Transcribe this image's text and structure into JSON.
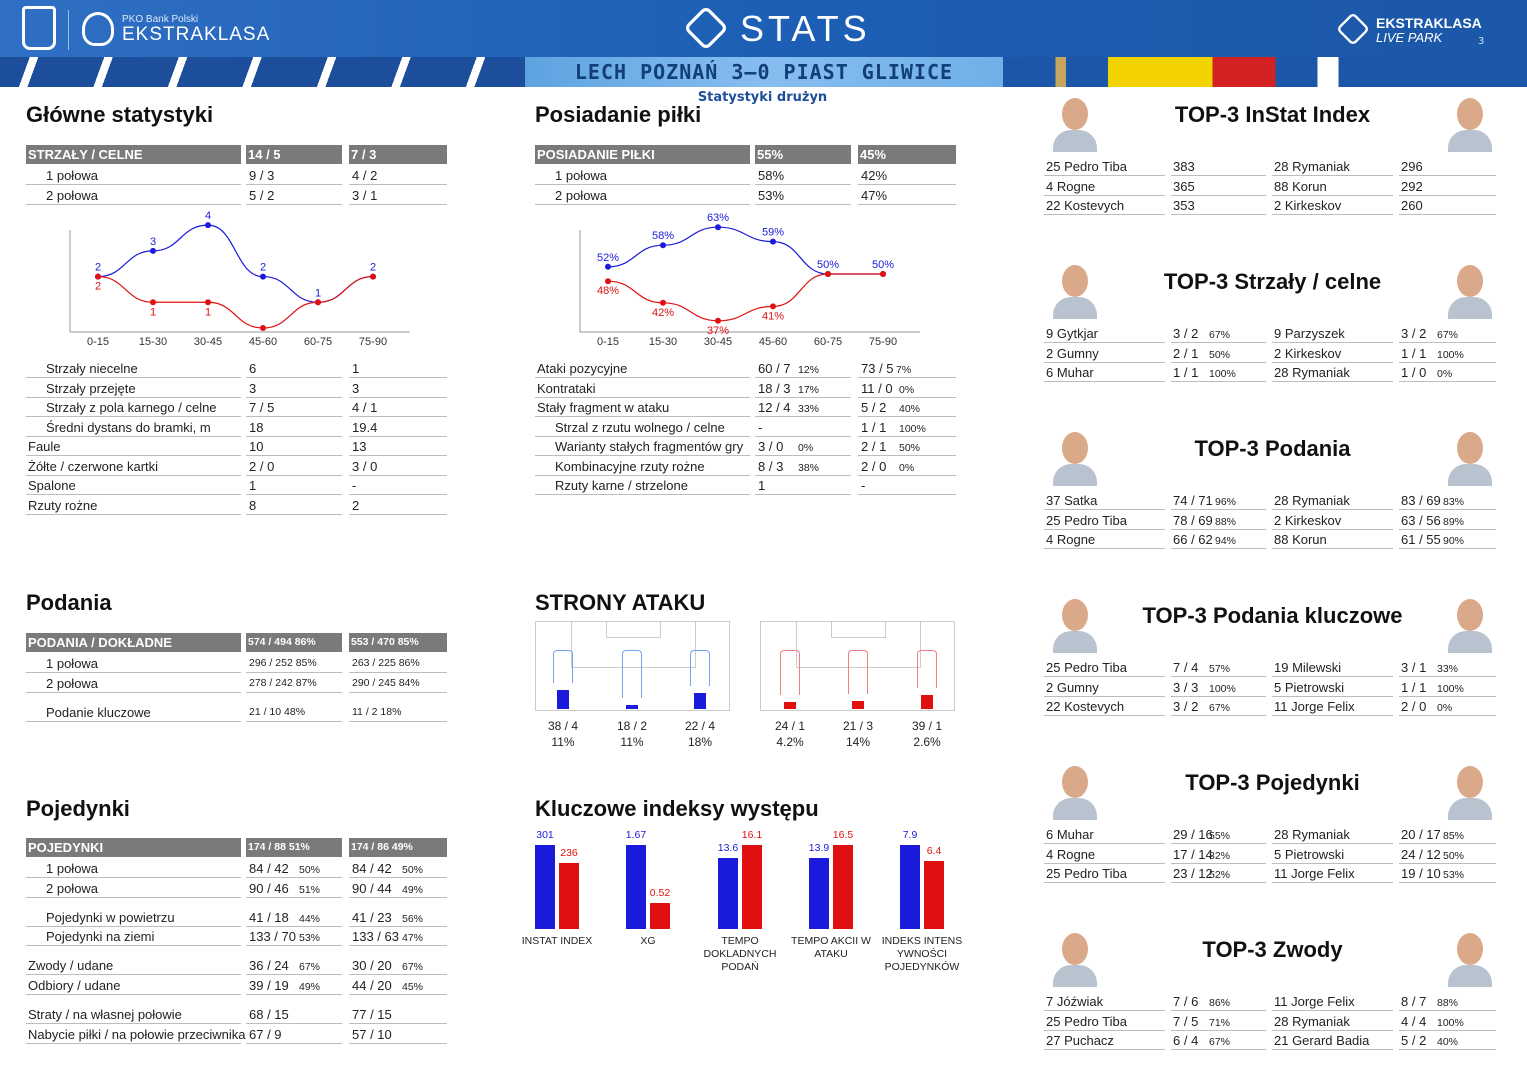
{
  "header": {
    "sponsor": "PKO Bank Polski",
    "league": "EKSTRAKLASA",
    "stats": "STATS",
    "liveparkTop": "EKSTRAKLASA",
    "liveparkBottom": "LIVE PARK",
    "match": "LECH POZNAŃ 3–0 PIAST GLIWICE",
    "subtitle": "Statystyki drużyn",
    "page": "3"
  },
  "colors": {
    "home": "#1a1adb",
    "away": "#e01010",
    "header": "#1c5fb5",
    "tablehead": "#7a7a7a"
  },
  "main": {
    "title": "Główne statystyki",
    "head": [
      "STRZAŁY / CELNE",
      "14 / 5",
      "7 / 3"
    ],
    "halves": [
      [
        "1 połowa",
        "9 / 3",
        "4 / 2"
      ],
      [
        "2 połowa",
        "5 / 2",
        "3 / 1"
      ]
    ],
    "rows": [
      [
        "Strzały niecelne",
        "6",
        "1"
      ],
      [
        "Strzały przejęte",
        "3",
        "3"
      ],
      [
        "Strzały z pola karnego / celne",
        "7 / 5",
        "4 / 1"
      ],
      [
        "Średni dystans do bramki, m",
        "18",
        "19.4"
      ],
      [
        "Faule",
        "10",
        "13"
      ],
      [
        "Żółte / czerwone kartki",
        "2 / 0",
        "3 / 0"
      ],
      [
        "Spalone",
        "1",
        "-"
      ],
      [
        "Rzuty rożne",
        "8",
        "2"
      ]
    ]
  },
  "chart_data": [
    {
      "type": "line",
      "categories": [
        "0-15",
        "15-30",
        "30-45",
        "45-60",
        "60-75",
        "75-90"
      ],
      "series": [
        {
          "values": [
            2,
            3,
            4,
            2,
            1,
            2
          ]
        },
        {
          "values": [
            2,
            1,
            1,
            0,
            1,
            2
          ]
        }
      ],
      "data_labels": [
        [
          "2",
          "3",
          "4",
          "2",
          "1",
          "2"
        ],
        [
          "2",
          "1",
          "1",
          "",
          "",
          ""
        ]
      ]
    },
    {
      "type": "line",
      "categories": [
        "0-15",
        "15-30",
        "30-45",
        "45-60",
        "60-75",
        "75-90"
      ],
      "series": [
        {
          "values": [
            52,
            58,
            63,
            59,
            50,
            50
          ]
        },
        {
          "values": [
            48,
            42,
            37,
            41,
            50,
            50
          ]
        }
      ],
      "data_labels": [
        [
          "52%",
          "58%",
          "63%",
          "59%",
          "50%",
          "50%"
        ],
        [
          "48%",
          "42%",
          "37%",
          "41%",
          "",
          ""
        ]
      ]
    },
    {
      "type": "bar",
      "categories": [
        "INSTAT INDEX",
        "XG",
        "TEMPO DOKLADNYCH PODAŃ",
        "TEMPO AKCII W ATAKU",
        "INDEKS INTENS YWNOŚCI POJEDYNKÓW"
      ],
      "series": [
        {
          "values": [
            301,
            1.67,
            13.6,
            13.9,
            7.9
          ]
        },
        {
          "values": [
            236,
            0.52,
            16.1,
            16.5,
            6.4
          ]
        }
      ],
      "value_labels": [
        [
          "301",
          "1.67",
          "13.6",
          "13.9",
          "7.9"
        ],
        [
          "236",
          "0.52",
          "16.1",
          "16.5",
          "6.4"
        ]
      ]
    }
  ],
  "poss": {
    "title": "Posiadanie piłki",
    "head": [
      "POSIADANIE PIŁKI",
      "55%",
      "45%"
    ],
    "halves": [
      [
        "1 połowa",
        "58%",
        "42%"
      ],
      [
        "2 połowa",
        "53%",
        "47%"
      ]
    ],
    "rows": [
      [
        "Ataki pozycyjne",
        "60 / 7",
        "12%",
        "73 / 5",
        "7%"
      ],
      [
        "Kontrataki",
        "18 / 3",
        "17%",
        "11 / 0",
        "0%"
      ],
      [
        "Stały fragment w ataku",
        "12 / 4",
        "33%",
        "5 / 2",
        "40%"
      ],
      [
        "Strzal z rzutu wolnego / celne",
        "-",
        "",
        "1 / 1",
        "100%"
      ],
      [
        "Warianty stałych fragmentów gry",
        "3 / 0",
        "0%",
        "2 / 1",
        "50%"
      ],
      [
        "Kombinacyjne rzuty rożne",
        "8 / 3",
        "38%",
        "2 / 0",
        "0%"
      ],
      [
        "Rzuty karne / strzelone",
        "1",
        "",
        "-",
        ""
      ]
    ]
  },
  "passes": {
    "title": "Podania",
    "head": [
      "PODANIA / DOKŁADNE",
      "574 / 494 86%",
      "553 / 470 85%"
    ],
    "rows": [
      [
        "1 połowa",
        "296 / 252 85%",
        "263 / 225 86%"
      ],
      [
        "2 połowa",
        "278 / 242 87%",
        "290 / 245 84%"
      ],
      [
        "Podanie kluczowe",
        "21 / 10    48%",
        "11 / 2      18%"
      ]
    ]
  },
  "duels": {
    "title": "Pojedynki",
    "head": [
      "POJEDYNKI",
      "174 / 88 51%",
      "174 / 86 49%"
    ],
    "rows": [
      [
        "1 połowa",
        "84 / 42",
        "50%",
        "84 / 42",
        "50%"
      ],
      [
        "2 połowa",
        "90 / 46",
        "51%",
        "90 / 44",
        "49%"
      ],
      [
        "Pojedynki w powietrzu",
        "41 / 18",
        "44%",
        "41 / 23",
        "56%"
      ],
      [
        "Pojedynki na ziemi",
        "133 / 70",
        "53%",
        "133 / 63",
        "47%"
      ],
      [
        "Zwody / udane",
        "36 / 24",
        "67%",
        "30 / 20",
        "67%"
      ],
      [
        "Odbiory / udane",
        "39 / 19",
        "49%",
        "44 / 20",
        "45%"
      ],
      [
        "Straty / na własnej połowie",
        "68 / 15",
        "",
        "77 / 15",
        ""
      ],
      [
        "Nabycie piłki / na połowie przeciwnika",
        "67 / 9",
        "",
        "57 / 10",
        ""
      ]
    ]
  },
  "attack": {
    "title": "STRONY ATAKU",
    "home": [
      [
        "38 / 4",
        "11%"
      ],
      [
        "18 / 2",
        "11%"
      ],
      [
        "22 / 4",
        "18%"
      ]
    ],
    "away": [
      [
        "24 / 1",
        "4.2%"
      ],
      [
        "21 / 3",
        "14%"
      ],
      [
        "39 / 1",
        "2.6%"
      ]
    ]
  },
  "kpi": {
    "title": "Kluczowe indeksy występu"
  },
  "tops": [
    {
      "title": "TOP-3 InStat Index",
      "rows": [
        [
          "25 Pedro Tiba",
          "383",
          "",
          "28 Rymaniak",
          "296",
          ""
        ],
        [
          "4  Rogne",
          "365",
          "",
          "88 Korun",
          "292",
          ""
        ],
        [
          "22 Kostevych",
          "353",
          "",
          "2   Kirkeskov",
          "260",
          ""
        ]
      ]
    },
    {
      "title": "TOP-3 Strzały / celne",
      "rows": [
        [
          "9   Gytkjar",
          "3 / 2",
          "67%",
          "9   Parzyszek",
          "3 / 2",
          "67%"
        ],
        [
          "2   Gumny",
          "2 / 1",
          "50%",
          "2   Kirkeskov",
          "1 / 1",
          "100%"
        ],
        [
          "6   Muhar",
          "1 / 1",
          "100%",
          "28 Rymaniak",
          "1 / 0",
          "0%"
        ]
      ]
    },
    {
      "title": "TOP-3 Podania",
      "rows": [
        [
          "37 Satka",
          "74 / 71",
          "96%",
          "28 Rymaniak",
          "83 / 69",
          "83%"
        ],
        [
          "25 Pedro Tiba",
          "78 / 69",
          "88%",
          "2   Kirkeskov",
          "63 / 56",
          "89%"
        ],
        [
          "4   Rogne",
          "66 / 62",
          "94%",
          "88 Korun",
          "61 / 55",
          "90%"
        ]
      ]
    },
    {
      "title": "TOP-3 Podania kluczowe",
      "rows": [
        [
          "25 Pedro Tiba",
          "7 / 4",
          "57%",
          "19 Milewski",
          "3 / 1",
          "33%"
        ],
        [
          "2   Gumny",
          "3 / 3",
          "100%",
          "5   Pietrowski",
          "1 / 1",
          "100%"
        ],
        [
          "22 Kostevych",
          "3 / 2",
          "67%",
          "11 Jorge Felix",
          "2 / 0",
          "0%"
        ]
      ]
    },
    {
      "title": "TOP-3 Pojedynki",
      "rows": [
        [
          "6   Muhar",
          "29 / 16",
          "55%",
          "28 Rymaniak",
          "20 / 17",
          "85%"
        ],
        [
          "4   Rogne",
          "17 / 14",
          "82%",
          "5   Pietrowski",
          "24 / 12",
          "50%"
        ],
        [
          "25 Pedro Tiba",
          "23 / 12",
          "52%",
          "11 Jorge Felix",
          "19 / 10",
          "53%"
        ]
      ]
    },
    {
      "title": "TOP-3 Zwody",
      "rows": [
        [
          "7   Jóźwiak",
          "7 / 6",
          "86%",
          "11 Jorge Felix",
          "8 / 7",
          "88%"
        ],
        [
          "25 Pedro Tiba",
          "7 / 5",
          "71%",
          "28 Rymaniak",
          "4 / 4",
          "100%"
        ],
        [
          "27 Puchacz",
          "6 / 4",
          "67%",
          "21 Gerard Badia",
          "5 / 2",
          "40%"
        ]
      ]
    }
  ]
}
